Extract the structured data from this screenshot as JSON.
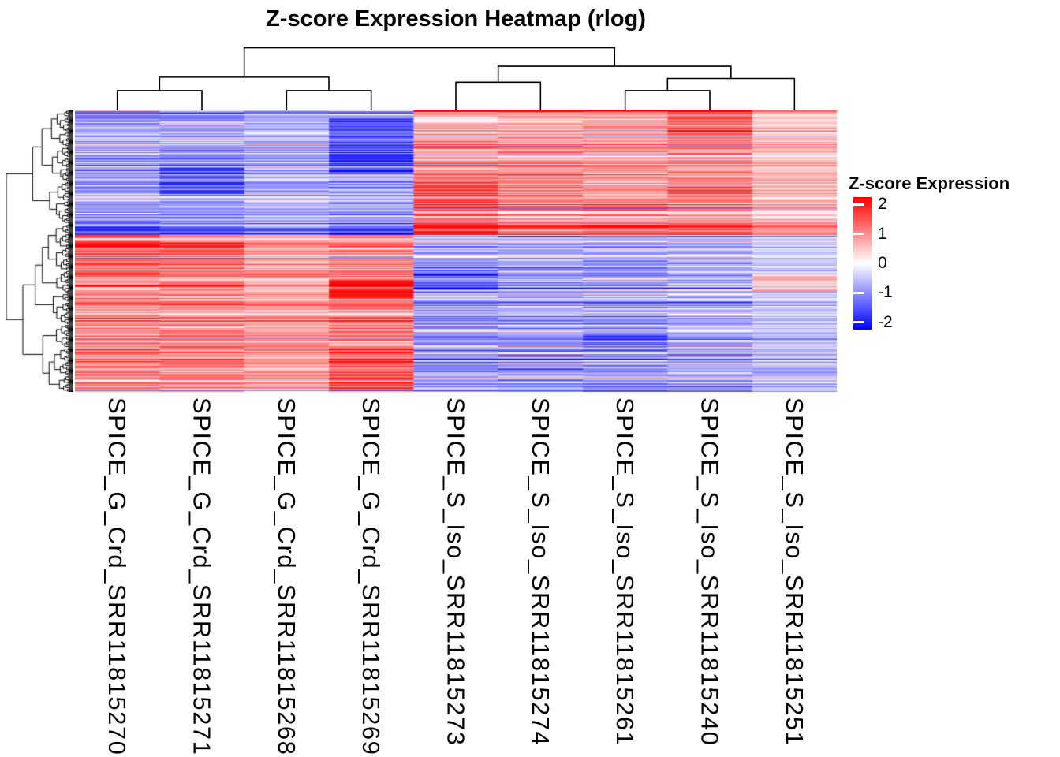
{
  "legend": {
    "title": "Z-score Expression",
    "ticks": [
      "2",
      "1",
      "0",
      "-1",
      "-2"
    ],
    "tick_values": [
      2,
      1,
      0,
      -1,
      -2
    ]
  },
  "chart_data": {
    "type": "heatmap",
    "title": "Z-score Expression Heatmap (rlog)",
    "columns": [
      "SPICE_G_Crd_SRR11815270",
      "SPICE_G_Crd_SRR11815271",
      "SPICE_G_Crd_SRR11815268",
      "SPICE_G_Crd_SRR11815269",
      "SPICE_S_Iso_SRR11815273",
      "SPICE_S_Iso_SRR11815274",
      "SPICE_S_Iso_SRR11815261",
      "SPICE_S_Iso_SRR11815240",
      "SPICE_S_Iso_SRR11815251"
    ],
    "column_groups": [
      {
        "name": "SPICE_G_Crd",
        "columns": [
          0,
          1,
          2,
          3
        ]
      },
      {
        "name": "SPICE_S_Iso",
        "columns": [
          4,
          5,
          6,
          7,
          8
        ]
      }
    ],
    "rows": 330,
    "row_labels_shown": false,
    "clustering": {
      "rows": true,
      "columns": true
    },
    "colorscale": {
      "min": -2,
      "max": 2,
      "min_color": "#0000ff",
      "mid_color": "#ffffff",
      "max_color": "#ff0000"
    },
    "col_dendrogram": {
      "merges": [
        {
          "a": "L0",
          "b": "L1",
          "h": 0.31
        },
        {
          "a": "L2",
          "b": "L3",
          "h": 0.31
        },
        {
          "a": "M0",
          "b": "M1",
          "h": 0.52
        },
        {
          "a": "L4",
          "b": "L5",
          "h": 0.44
        },
        {
          "a": "L6",
          "b": "L7",
          "h": 0.31
        },
        {
          "a": "M4",
          "b": "L8",
          "h": 0.5
        },
        {
          "a": "M3",
          "b": "M5",
          "h": 0.69
        },
        {
          "a": "M2",
          "b": "M6",
          "h": 0.98
        }
      ]
    },
    "pattern": {
      "rows": 330,
      "blocks": [
        {
          "from": 0.0,
          "to": 0.44,
          "g_mean": -0.78,
          "s_mean": 0.82
        },
        {
          "from": 0.44,
          "to": 1.01,
          "g_mean": 1.0,
          "s_mean": -0.72
        }
      ],
      "bands": [
        {
          "cols": [
            3
          ],
          "from": 0.03,
          "to": 0.22,
          "add": -0.7
        },
        {
          "cols": [
            1
          ],
          "from": 0.2,
          "to": 0.3,
          "add": -0.5
        },
        {
          "cols": [
            4
          ],
          "from": 0.24,
          "to": 0.44,
          "add": 0.45
        },
        {
          "cols": [
            7
          ],
          "from": 0.0,
          "to": 0.09,
          "add": 0.55
        },
        {
          "cols": [
            0,
            1,
            2,
            3
          ],
          "from": 0.4,
          "to": 0.44,
          "add": -0.5
        },
        {
          "cols": [
            4,
            5,
            6,
            7,
            8
          ],
          "from": 0.4,
          "to": 0.44,
          "add": 0.6
        },
        {
          "cols": [
            0
          ],
          "from": 0.44,
          "to": 0.58,
          "add": 0.4
        },
        {
          "cols": [
            1
          ],
          "from": 0.46,
          "to": 0.56,
          "add": 0.3
        },
        {
          "cols": [
            3
          ],
          "from": 0.6,
          "to": 0.665,
          "add": 0.95
        },
        {
          "cols": [
            3
          ],
          "from": 0.84,
          "to": 1.01,
          "add": 0.45
        },
        {
          "cols": [
            4
          ],
          "from": 0.55,
          "to": 0.65,
          "add": -0.45
        },
        {
          "cols": [
            6
          ],
          "from": 0.78,
          "to": 0.86,
          "add": -0.35
        },
        {
          "cols": [
            8
          ],
          "from": 0.58,
          "to": 0.64,
          "add": 1.5
        },
        {
          "cols": [
            7
          ],
          "from": 0.44,
          "to": 1.01,
          "add": 0.15
        }
      ],
      "col_scale": {
        "2": 0.82,
        "8": 0.65
      },
      "row_stripe_sd": 0.42,
      "cell_noise_sd": 0.28
    }
  }
}
